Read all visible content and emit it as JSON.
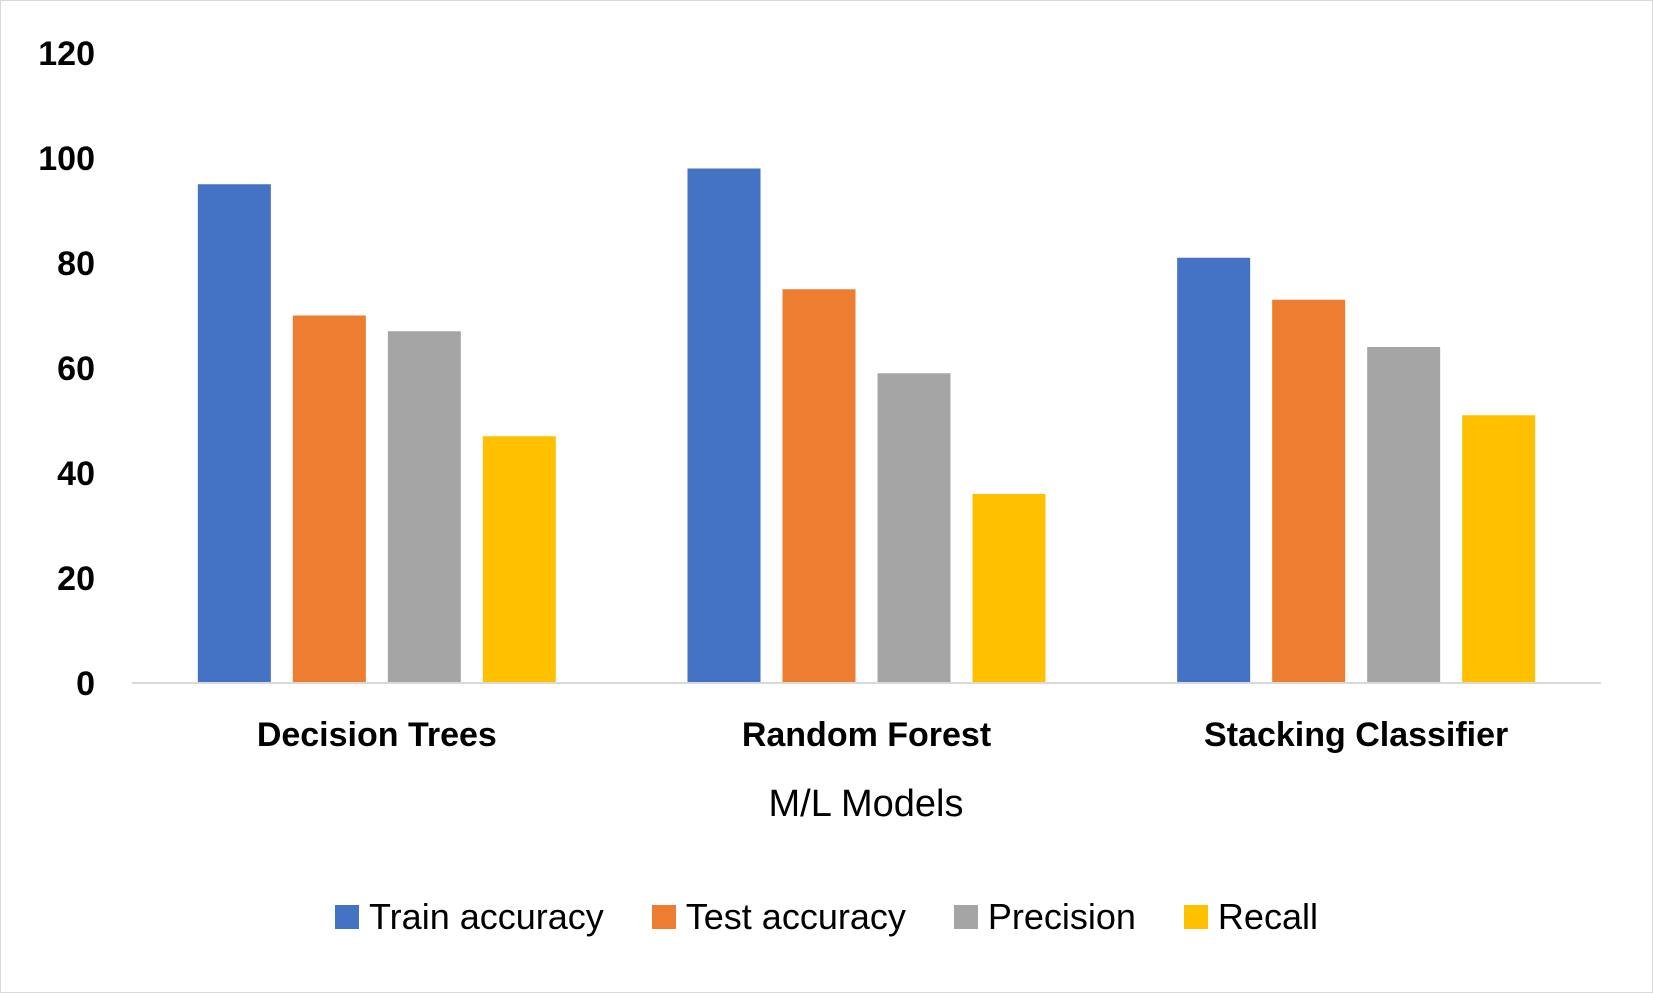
{
  "chart_data": {
    "type": "bar",
    "title": "",
    "xlabel": "M/L Models",
    "ylabel": "",
    "ylim": [
      0,
      120
    ],
    "yticks": [
      0,
      20,
      40,
      60,
      80,
      100,
      120
    ],
    "categories": [
      "Decision Trees",
      "Random Forest",
      "Stacking Classifier"
    ],
    "series": [
      {
        "name": "Train accuracy",
        "color": "#4472C4",
        "values": [
          95,
          98,
          81
        ]
      },
      {
        "name": "Test accuracy",
        "color": "#ED7D31",
        "values": [
          70,
          75,
          73
        ]
      },
      {
        "name": "Precision",
        "color": "#A5A5A5",
        "values": [
          67,
          59,
          64
        ]
      },
      {
        "name": "Recall",
        "color": "#FFC000",
        "values": [
          47,
          36,
          51
        ]
      }
    ],
    "grid": false,
    "legend_position": "bottom"
  }
}
